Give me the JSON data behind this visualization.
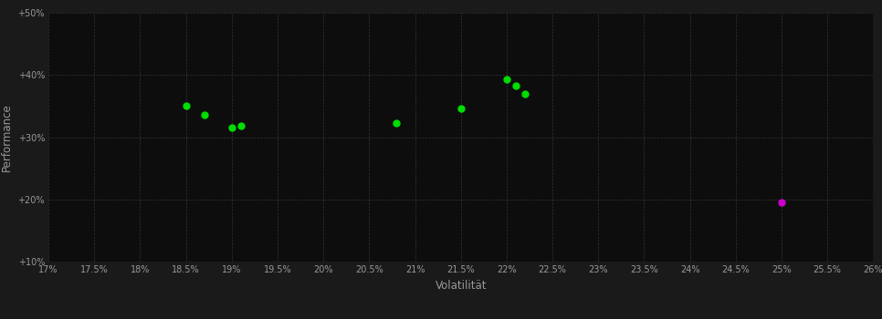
{
  "background_color": "#1a1a1a",
  "plot_bg_color": "#0d0d0d",
  "grid_color": "#333333",
  "xlabel": "Volatilität",
  "ylabel": "Performance",
  "xlim": [
    0.17,
    0.26
  ],
  "ylim": [
    0.1,
    0.5
  ],
  "xticks": [
    0.17,
    0.175,
    0.18,
    0.185,
    0.19,
    0.195,
    0.2,
    0.205,
    0.21,
    0.215,
    0.22,
    0.225,
    0.23,
    0.235,
    0.24,
    0.245,
    0.25,
    0.255,
    0.26
  ],
  "yticks": [
    0.1,
    0.2,
    0.3,
    0.4,
    0.5
  ],
  "green_points": [
    [
      0.185,
      0.35
    ],
    [
      0.187,
      0.336
    ],
    [
      0.19,
      0.315
    ],
    [
      0.191,
      0.319
    ],
    [
      0.208,
      0.322
    ],
    [
      0.215,
      0.346
    ],
    [
      0.22,
      0.393
    ],
    [
      0.221,
      0.383
    ],
    [
      0.222,
      0.37
    ]
  ],
  "magenta_points": [
    [
      0.25,
      0.195
    ]
  ],
  "green_color": "#00dd00",
  "magenta_color": "#cc00cc",
  "tick_color": "#999999",
  "label_color": "#999999",
  "marker_size": 5
}
